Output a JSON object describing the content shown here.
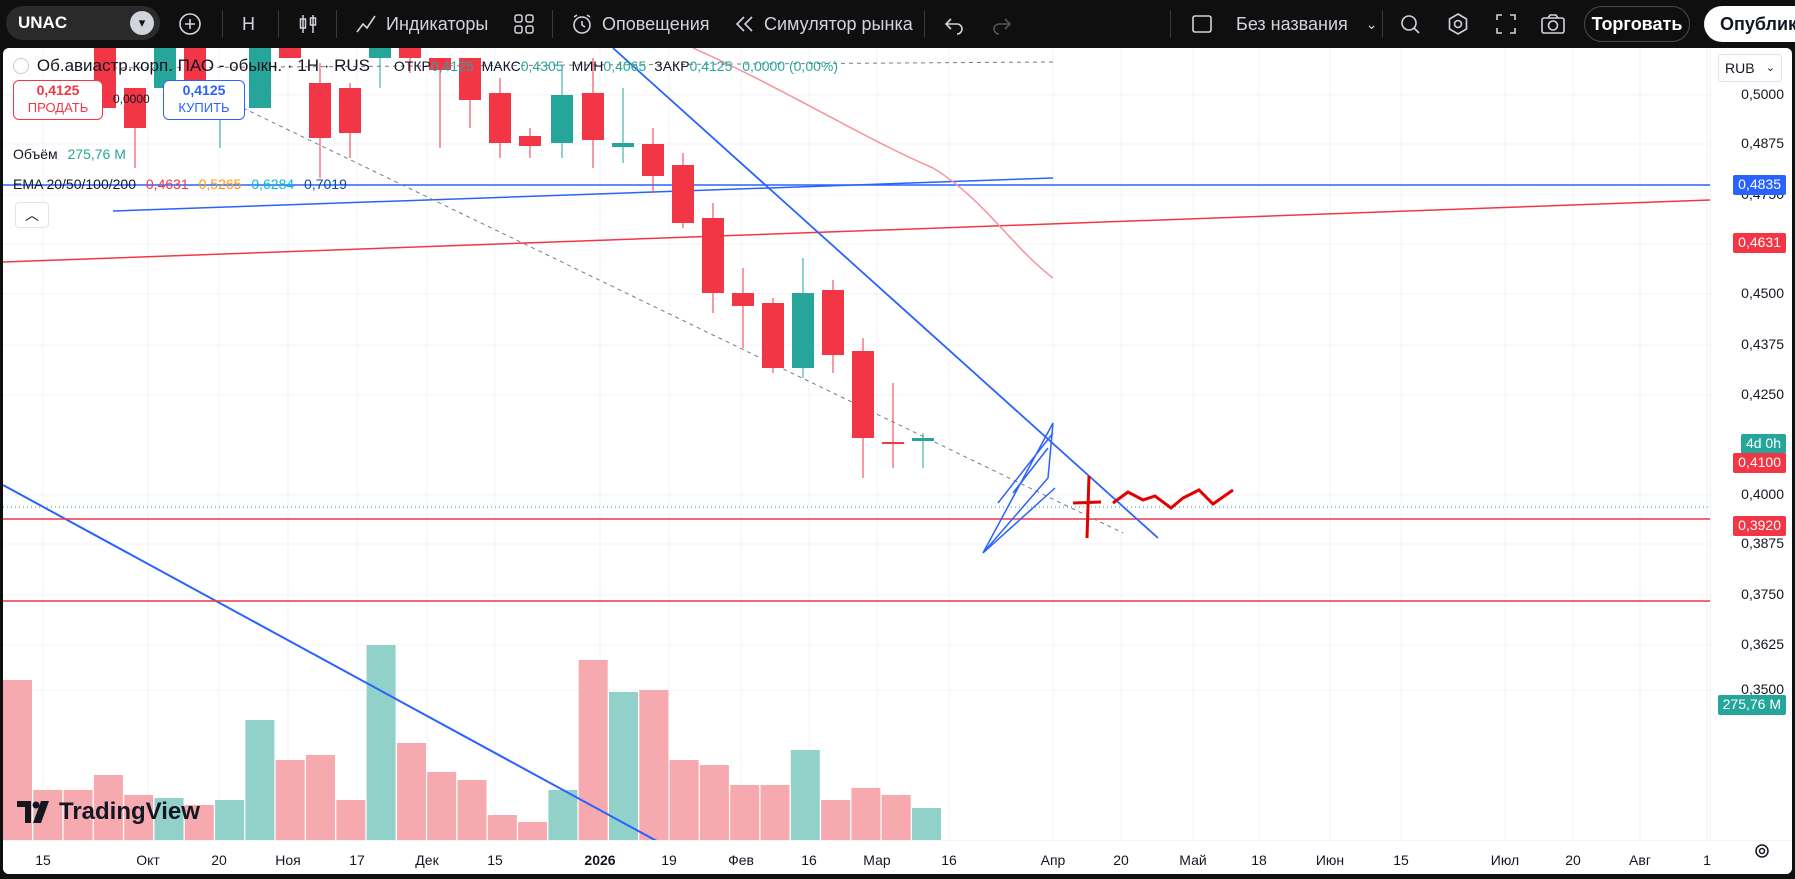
{
  "toolbar": {
    "symbol": "UNAC",
    "interval": "Н",
    "indicators_label": "Индикаторы",
    "alerts_label": "Оповещения",
    "replay_label": "Симулятор рынка",
    "layout_name": "Без названия",
    "trade_label": "Торговать",
    "publish_label": "Опубликовать"
  },
  "legend": {
    "title": "Об.авиастр.корп. ПАО - обыкн. · 1Н · RUS",
    "ohlc": [
      {
        "label": "ОТКР",
        "value": "0,4125"
      },
      {
        "label": "МАКС",
        "value": "0,4305"
      },
      {
        "label": "МИН",
        "value": "0,4065"
      },
      {
        "label": "ЗАКР",
        "value": "0,4125"
      }
    ],
    "change": "0,0000 (0,00%)",
    "sell_price": "0,4125",
    "sell_label": "ПРОДАТЬ",
    "spread": "0,0000",
    "buy_price": "0,4125",
    "buy_label": "КУПИТЬ",
    "volume_label": "Объём",
    "volume_value": "275,76 М",
    "ema_label": "EMA 20/50/100/200",
    "ema_values": [
      "0,4631",
      "0,5265",
      "0,6284",
      "0,7019"
    ]
  },
  "currency": "RUB",
  "price_axis": [
    "0,5000",
    "0,4875",
    "0,4750",
    "0,4625",
    "0,4500",
    "0,4375",
    "0,4250",
    "0,4000",
    "0,3875",
    "0,3750",
    "0,3625",
    "0,3500"
  ],
  "price_tags": [
    {
      "label": "0,4835",
      "color": "#2962ff"
    },
    {
      "label": "0,4631",
      "color": "#f23645"
    },
    {
      "label": "4d 0h",
      "color": "#26a69a"
    },
    {
      "label": "0,4100",
      "color": "#f23645"
    },
    {
      "label": "0,3920",
      "color": "#f23645"
    },
    {
      "label": "275,76 M",
      "color": "#26a69a"
    }
  ],
  "time_axis": [
    "15",
    "Окт",
    "20",
    "Ноя",
    "17",
    "Дек",
    "15",
    "2026",
    "19",
    "Фев",
    "16",
    "Мар",
    "16",
    "Апр",
    "20",
    "Май",
    "18",
    "Июн",
    "15",
    "Июл",
    "20",
    "Авг",
    "1"
  ],
  "brand": "TradingView",
  "colors": {
    "up": "#26a69a",
    "down": "#f23645",
    "line_blue": "#2962ff",
    "line_red": "#f23645"
  }
}
